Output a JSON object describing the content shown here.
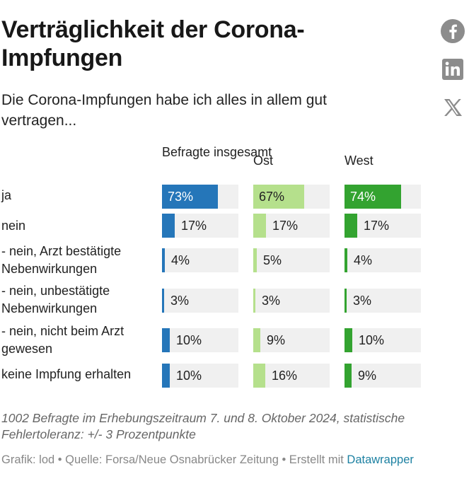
{
  "header": {
    "title": "Verträglichkeit der Corona-Impfungen",
    "subtitle": "Die Corona-Impfungen habe ich alles in allem gut vertragen..."
  },
  "social": {
    "facebook_icon": "facebook-icon",
    "linkedin_icon": "linkedin-icon",
    "x_icon": "x-icon"
  },
  "chart_data": {
    "type": "table",
    "xlim": [
      0,
      100
    ],
    "unit": "%",
    "columns": [
      {
        "name": "Befragte insgesamt",
        "color": "#2576b9"
      },
      {
        "name": "Ost",
        "color": "#b5e08c"
      },
      {
        "name": "West",
        "color": "#33a330"
      }
    ],
    "rows": [
      {
        "label": "ja",
        "values": [
          73,
          67,
          74
        ],
        "display": [
          "73%",
          "67%",
          "74%"
        ]
      },
      {
        "label": "nein",
        "values": [
          17,
          17,
          17
        ],
        "display": [
          "17%",
          "17%",
          "17%"
        ]
      },
      {
        "label": "- nein, Arzt bestätigte Nebenwirkungen",
        "values": [
          4,
          5,
          4
        ],
        "display": [
          "4%",
          "5%",
          "4%"
        ]
      },
      {
        "label": "- nein, unbestätigte Nebenwirkungen",
        "values": [
          3,
          3,
          3
        ],
        "display": [
          "3%",
          "3%",
          "3%"
        ]
      },
      {
        "label": "- nein, nicht beim Arzt gewesen",
        "values": [
          10,
          9,
          10
        ],
        "display": [
          "10%",
          "9%",
          "10%"
        ]
      },
      {
        "label": "keine Impfung erhalten",
        "values": [
          10,
          16,
          9
        ],
        "display": [
          "10%",
          "16%",
          "9%"
        ]
      }
    ]
  },
  "notes": "1002 Befragte im Erhebungszeitraum 7. und 8. Oktober 2024, statistische Fehlertoleranz: +/- 3 Prozentpunkte",
  "footer": {
    "credit": "Grafik: lod • Quelle: Forsa/Neue Osnabrücker Zeitung • Erstellt mit ",
    "link": "Datawrapper"
  }
}
